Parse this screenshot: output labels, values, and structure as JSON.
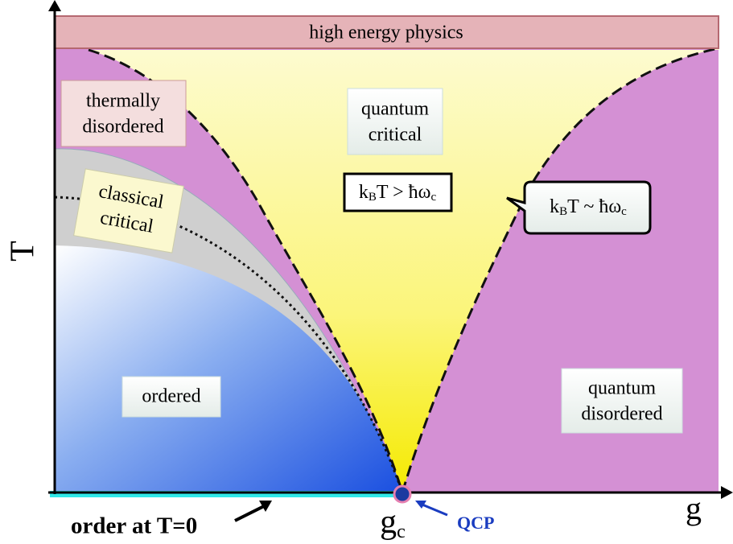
{
  "header": {
    "band": "high energy physics"
  },
  "axes": {
    "y_label": "T",
    "x_label": "g",
    "critical_point": [
      "g",
      "c"
    ]
  },
  "regions": {
    "thermally_disordered": [
      "thermally",
      "disordered"
    ],
    "quantum_critical": [
      "quantum",
      "critical"
    ],
    "classical_critical": [
      "classical",
      "critical"
    ],
    "ordered": "ordered",
    "quantum_disordered": [
      "quantum",
      "disordered"
    ]
  },
  "formulas": {
    "inside": [
      "k",
      "B",
      "T > ħω",
      "c"
    ],
    "boundary": [
      "k",
      "B",
      "T ~ ħω",
      "c"
    ]
  },
  "annotations": {
    "qcp": "QCP",
    "order_at_zero": "order at T=0"
  }
}
